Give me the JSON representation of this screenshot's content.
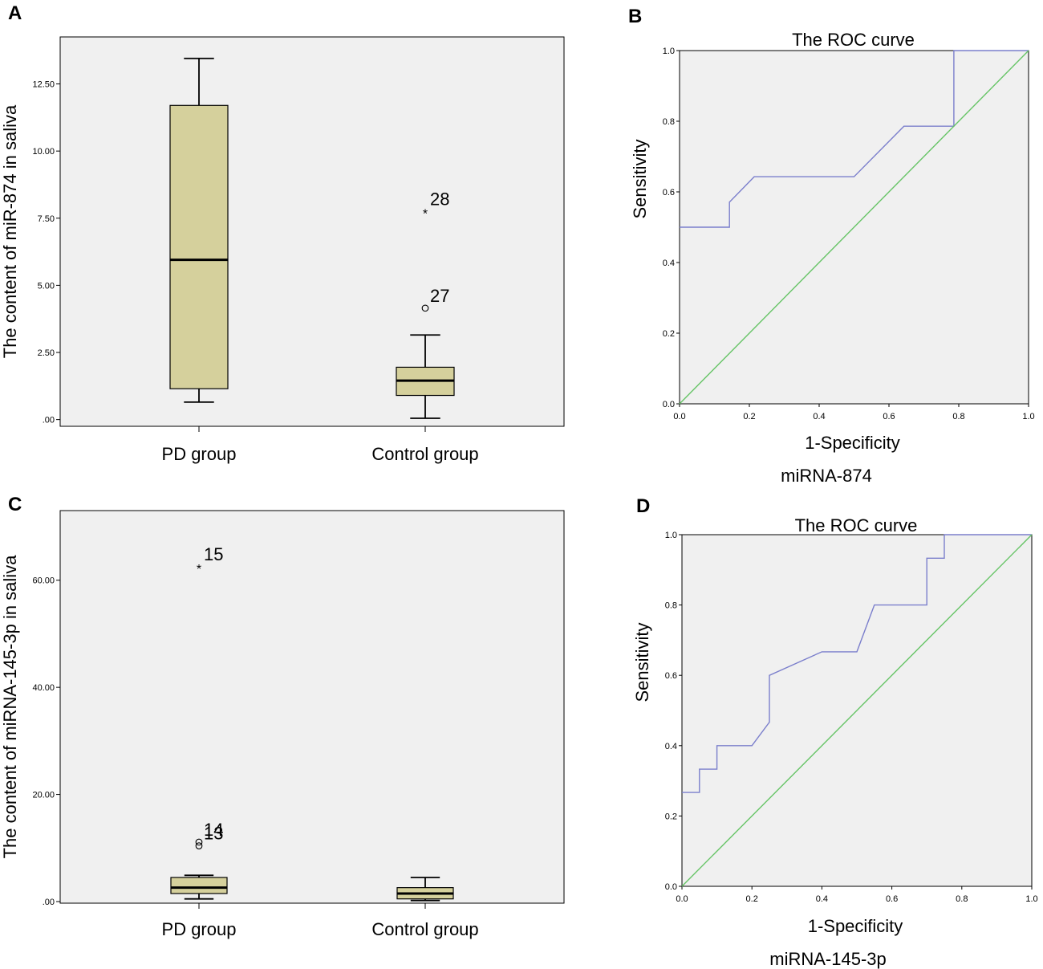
{
  "chart_data": [
    {
      "panel": "A",
      "type": "box",
      "ylabel": "The content of miR-874 in saliva",
      "ylim": [
        -0.25,
        14.25
      ],
      "yticks": [
        0,
        2.5,
        5,
        7.5,
        10,
        12.5
      ],
      "ytick_labels": [
        ".00",
        "2.50",
        "5.00",
        "7.50",
        "10.00",
        "12.50"
      ],
      "categories": [
        "PD group",
        "Control group"
      ],
      "boxes": [
        {
          "name": "PD group",
          "min": 0.65,
          "q1": 1.15,
          "median": 5.95,
          "q3": 11.7,
          "max": 13.45
        },
        {
          "name": "Control group",
          "min": 0.05,
          "q1": 0.9,
          "median": 1.45,
          "q3": 1.95,
          "max": 3.15
        }
      ],
      "outliers": [
        {
          "group": 1,
          "value": 7.75,
          "marker": "*",
          "label": "28"
        },
        {
          "group": 1,
          "value": 4.15,
          "marker": "o",
          "label": "27"
        }
      ]
    },
    {
      "panel": "B",
      "type": "line",
      "title": "The ROC curve",
      "xlabel": "1-Specificity",
      "ylabel": "Sensitivity",
      "caption": "miRNA-874",
      "xlim": [
        0,
        1
      ],
      "ylim": [
        0,
        1
      ],
      "ticks": [
        0,
        0.2,
        0.4,
        0.6,
        0.8,
        1.0
      ],
      "tick_labels": [
        "0.0",
        "0.2",
        "0.4",
        "0.6",
        "0.8",
        "1.0"
      ],
      "series": [
        {
          "name": "ROC",
          "color": "#7b7fcc",
          "x": [
            0,
            0.143,
            0.143,
            0.214,
            0.5,
            0.643,
            0.786,
            0.786,
            1.0
          ],
          "y": [
            0.5,
            0.5,
            0.571,
            0.643,
            0.643,
            0.786,
            0.786,
            1.0,
            1.0
          ]
        },
        {
          "name": "Reference",
          "color": "#66c466",
          "x": [
            0,
            1
          ],
          "y": [
            0,
            1
          ]
        }
      ]
    },
    {
      "panel": "C",
      "type": "box",
      "ylabel": "The content of miRNA-145-3p in saliva",
      "ylim": [
        -0.3,
        73.0
      ],
      "yticks": [
        0,
        20,
        40,
        60
      ],
      "ytick_labels": [
        ".00",
        "20.00",
        "40.00",
        "60.00"
      ],
      "categories": [
        "PD group",
        "Control group"
      ],
      "boxes": [
        {
          "name": "PD group",
          "min": 0.5,
          "q1": 1.5,
          "median": 2.6,
          "q3": 4.5,
          "max": 4.9
        },
        {
          "name": "Control group",
          "min": 0.2,
          "q1": 0.5,
          "median": 1.5,
          "q3": 2.6,
          "max": 4.5
        }
      ],
      "outliers": [
        {
          "group": 0,
          "value": 62.5,
          "marker": "*",
          "label": "15"
        },
        {
          "group": 0,
          "value": 11.1,
          "marker": "o",
          "label": "14"
        },
        {
          "group": 0,
          "value": 10.4,
          "marker": "o",
          "label": "13"
        }
      ]
    },
    {
      "panel": "D",
      "type": "line",
      "title": "The ROC curve",
      "xlabel": "1-Specificity",
      "ylabel": "Sensitivity",
      "caption": "miRNA-145-3p",
      "xlim": [
        0,
        1
      ],
      "ylim": [
        0,
        1
      ],
      "ticks": [
        0,
        0.2,
        0.4,
        0.6,
        0.8,
        1.0
      ],
      "tick_labels": [
        "0.0",
        "0.2",
        "0.4",
        "0.6",
        "0.8",
        "1.0"
      ],
      "series": [
        {
          "name": "ROC",
          "color": "#7b7fcc",
          "x": [
            0,
            0.05,
            0.05,
            0.1,
            0.1,
            0.2,
            0.25,
            0.25,
            0.4,
            0.5,
            0.55,
            0.7,
            0.7,
            0.75,
            0.75,
            1.0
          ],
          "y": [
            0.267,
            0.267,
            0.333,
            0.333,
            0.4,
            0.4,
            0.467,
            0.6,
            0.667,
            0.667,
            0.8,
            0.8,
            0.933,
            0.933,
            1.0,
            1.0
          ]
        },
        {
          "name": "Reference",
          "color": "#66c466",
          "x": [
            0,
            1
          ],
          "y": [
            0,
            1
          ]
        }
      ]
    }
  ]
}
